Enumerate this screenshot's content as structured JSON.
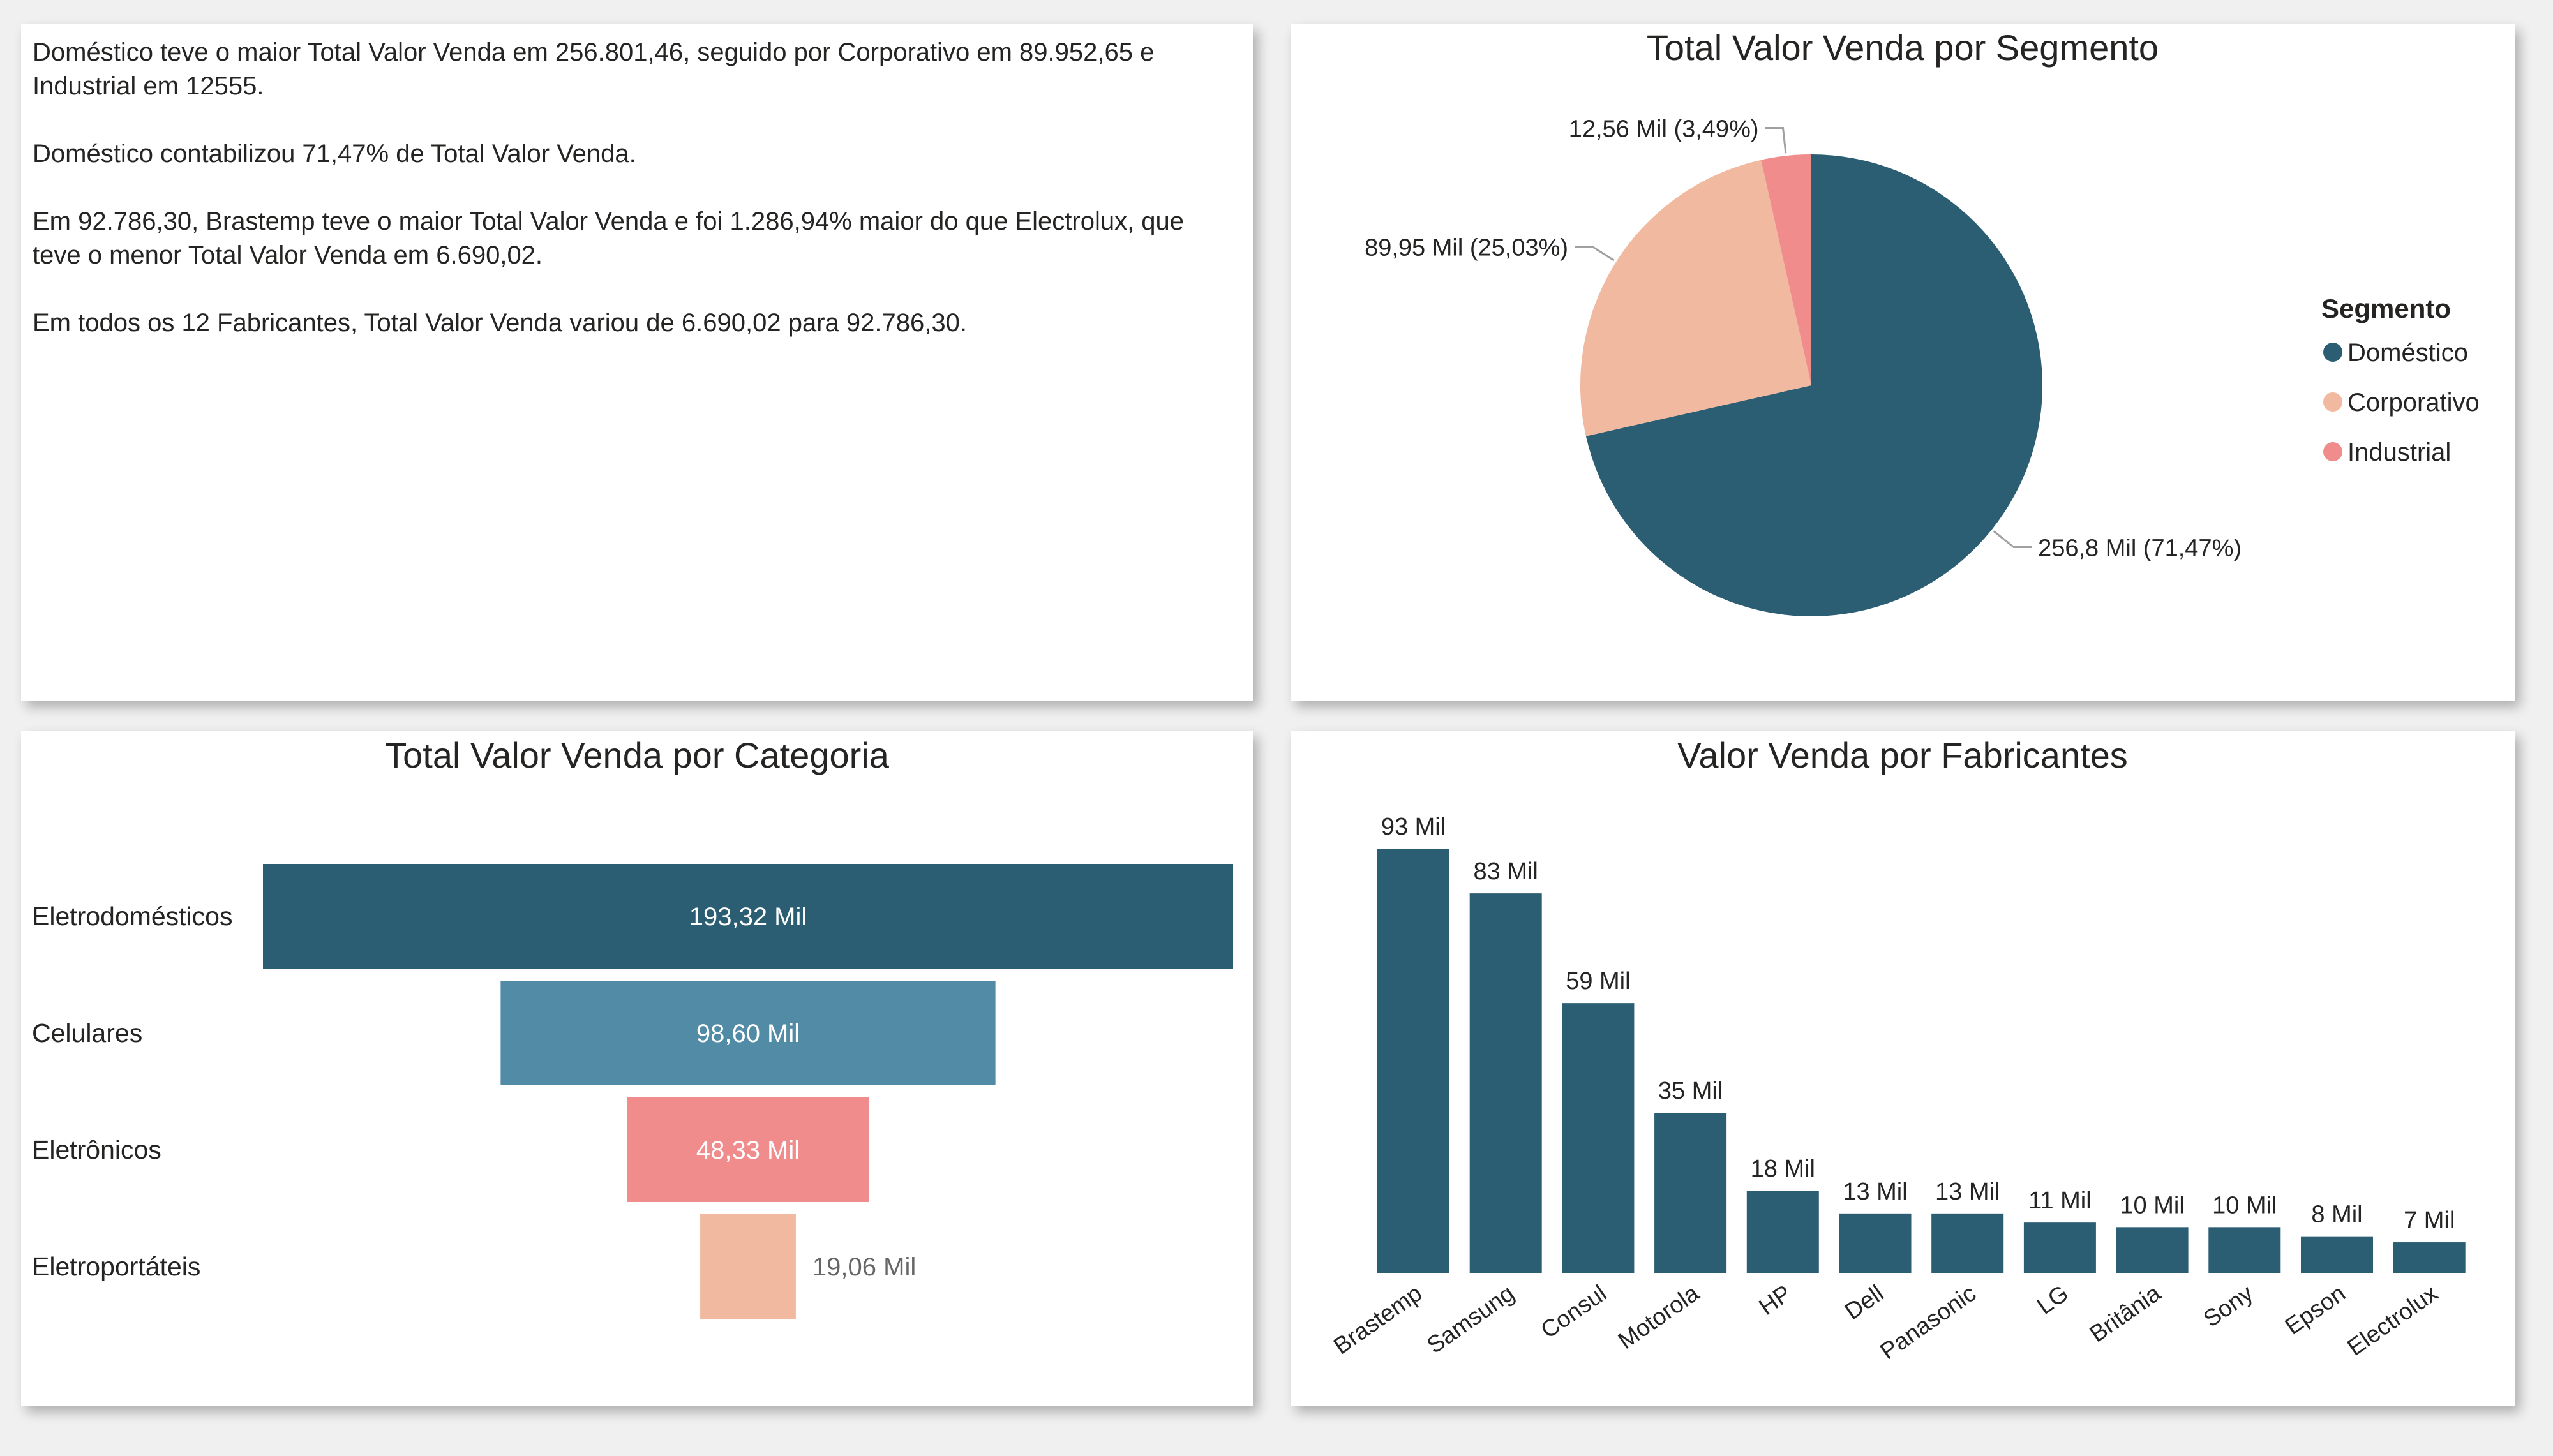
{
  "narrative": {
    "p1": "Doméstico teve o maior Total Valor Venda em 256.801,46, seguido por Corporativo em 89.952,65 e Industrial em 12555.",
    "p2": "Doméstico contabilizou 71,47% de Total Valor Venda.",
    "p3": "Em 92.786,30, Brastemp teve o maior Total Valor Venda e foi 1.286,94% maior do que Electrolux, que teve o menor Total Valor Venda em 6.690,02.",
    "p4": "Em todos os 12 Fabricantes, Total Valor Venda variou de 6.690,02 para 92.786,30."
  },
  "chart_data": [
    {
      "type": "pie",
      "title": "Total Valor Venda por Segmento",
      "legend_title": "Segmento",
      "legend_position": "right",
      "slices": [
        {
          "name": "Doméstico",
          "value": 256801.46,
          "label": "256,8 Mil (71,47%)",
          "color": "#2b5d73"
        },
        {
          "name": "Corporativo",
          "value": 89952.65,
          "label": "89,95 Mil (25,03%)",
          "color": "#f0b9a0"
        },
        {
          "name": "Industrial",
          "value": 12555,
          "label": "12,56 Mil (3,49%)",
          "color": "#f08c8c"
        }
      ]
    },
    {
      "type": "bar",
      "subtype": "funnel",
      "title": "Total Valor Venda por Categoria",
      "categories": [
        "Eletrodomésticos",
        "Celulares",
        "Eletrônicos",
        "Eletroportáteis"
      ],
      "values": [
        193320,
        98600,
        48330,
        19060
      ],
      "labels": [
        "193,32 Mil",
        "98,60 Mil",
        "48,33 Mil",
        "19,06 Mil"
      ],
      "colors": [
        "#2b5d73",
        "#528ba6",
        "#f08c8c",
        "#f0b9a0"
      ]
    },
    {
      "type": "bar",
      "title": "Valor Venda por Fabricantes",
      "categories": [
        "Brastemp",
        "Samsung",
        "Consul",
        "Motorola",
        "HP",
        "Dell",
        "Panasonic",
        "LG",
        "Britânia",
        "Sony",
        "Epson",
        "Electrolux"
      ],
      "values": [
        92786.3,
        83000,
        59000,
        35000,
        18000,
        13000,
        13000,
        11000,
        10000,
        10000,
        8000,
        6690.02
      ],
      "labels": [
        "93 Mil",
        "83 Mil",
        "59 Mil",
        "35 Mil",
        "18 Mil",
        "13 Mil",
        "13 Mil",
        "11 Mil",
        "10 Mil",
        "10 Mil",
        "8 Mil",
        "7 Mil"
      ],
      "color": "#2b5d73"
    }
  ]
}
